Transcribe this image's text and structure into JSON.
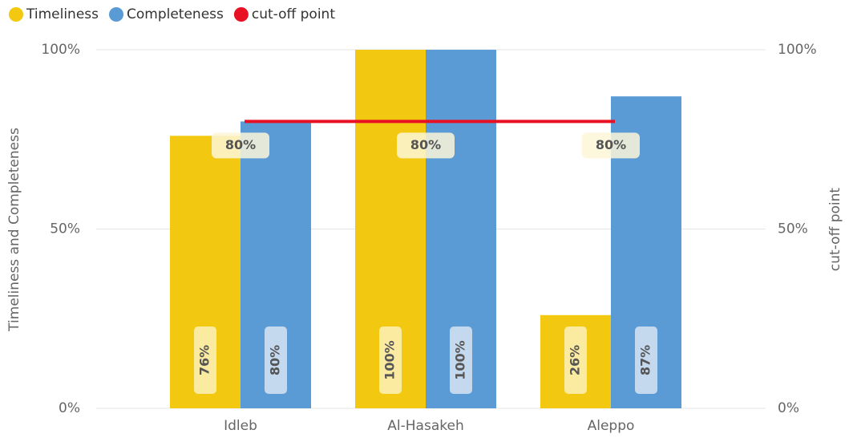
{
  "chart_data": {
    "type": "bar",
    "categories": [
      "Idleb",
      "Al-Hasakeh",
      "Aleppo"
    ],
    "series": [
      {
        "name": "Timeliness",
        "color": "#f2c811",
        "values": [
          76,
          100,
          26
        ],
        "value_labels": [
          "76%",
          "100%",
          "26%"
        ]
      },
      {
        "name": "Completeness",
        "color": "#5b9bd5",
        "values": [
          80,
          100,
          87
        ],
        "value_labels": [
          "80%",
          "100%",
          "87%"
        ]
      },
      {
        "name": "cut-off point",
        "color": "#e81123",
        "type": "line",
        "axis": "y2",
        "values": [
          80,
          80,
          80
        ],
        "value_labels": [
          "80%",
          "80%",
          "80%"
        ]
      }
    ],
    "ylim": [
      0,
      100
    ],
    "yticks": [
      {
        "value": 0,
        "label": "0%"
      },
      {
        "value": 50,
        "label": "50%"
      },
      {
        "value": 100,
        "label": "100%"
      }
    ],
    "y2lim": [
      0,
      100
    ],
    "y2ticks": [
      {
        "value": 0,
        "label": "0%"
      },
      {
        "value": 50,
        "label": "50%"
      },
      {
        "value": 100,
        "label": "100%"
      }
    ],
    "ylabel": "Timeliness and Completeness",
    "y2label": "cut-off point",
    "grid": true,
    "legend": "top-left"
  }
}
